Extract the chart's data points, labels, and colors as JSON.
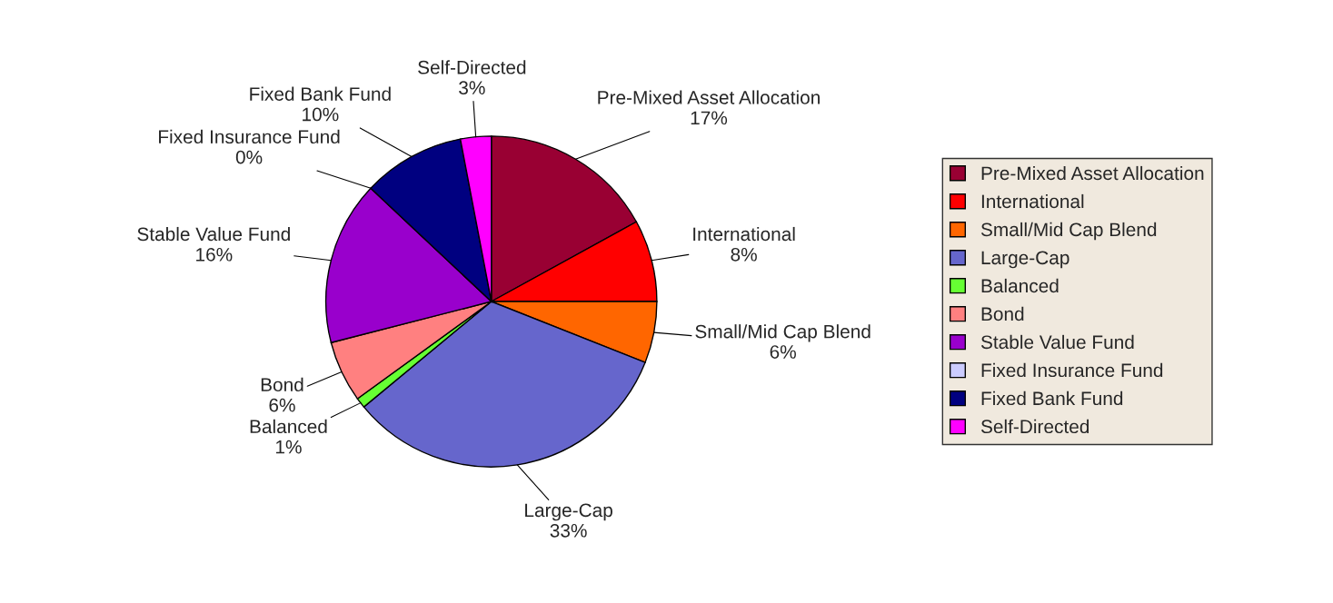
{
  "chart_data": {
    "type": "pie",
    "categories": [
      "Pre-Mixed Asset Allocation",
      "International",
      "Small/Mid Cap Blend",
      "Large-Cap",
      "Balanced",
      "Bond",
      "Stable Value Fund",
      "Fixed Insurance Fund",
      "Fixed Bank Fund",
      "Self-Directed"
    ],
    "values": [
      17,
      8,
      6,
      33,
      1,
      6,
      16,
      0,
      10,
      3
    ],
    "value_labels": [
      "17%",
      "8%",
      "6%",
      "33%",
      "1%",
      "6%",
      "16%",
      "0%",
      "10%",
      "3%"
    ],
    "colors": [
      "#990033",
      "#ff0000",
      "#ff6600",
      "#6666cc",
      "#66ff33",
      "#ff8080",
      "#9900cc",
      "#ccccff",
      "#000080",
      "#ff00ff"
    ],
    "legend": "right"
  }
}
